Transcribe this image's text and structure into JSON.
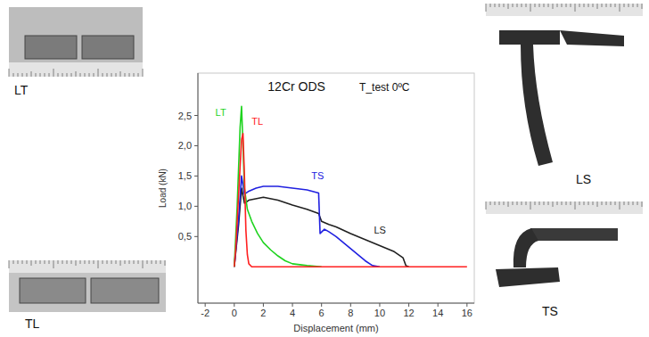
{
  "chart_data": {
    "type": "line",
    "title": "12Cr ODS",
    "annotation": "T_test 0ºC",
    "x_label": "Displacement (mm)",
    "y_label": "Load (kN)",
    "xlim": [
      -2.5,
      16.5
    ],
    "ylim": [
      -0.6,
      3.2
    ],
    "xticks": [
      -2,
      0,
      2,
      4,
      6,
      8,
      10,
      12,
      14,
      16
    ],
    "yticks": [
      {
        "value": 0.5,
        "label": "0,5"
      },
      {
        "value": 1.0,
        "label": "1,0"
      },
      {
        "value": 1.5,
        "label": "1,5"
      },
      {
        "value": 2.0,
        "label": "2,0"
      },
      {
        "value": 2.5,
        "label": "2,5"
      }
    ],
    "grid": false,
    "specimens": [
      "LT",
      "TL",
      "LS",
      "TS"
    ],
    "series": [
      {
        "name": "LT",
        "color": "#1fd31f",
        "x": [
          0,
          0.2,
          0.4,
          0.5,
          0.6,
          0.7,
          0.9,
          1.2,
          1.6,
          2.0,
          2.5,
          3.0,
          3.5,
          4.0,
          5.0,
          6.0
        ],
        "values": [
          0,
          1.0,
          2.3,
          2.65,
          2.0,
          1.3,
          0.95,
          0.75,
          0.55,
          0.4,
          0.28,
          0.18,
          0.1,
          0.05,
          0.02,
          0
        ]
      },
      {
        "name": "TL",
        "color": "#ff2020",
        "x": [
          0,
          0.1,
          0.3,
          0.5,
          0.6,
          0.7,
          0.8,
          0.9,
          1.0,
          1.2,
          16
        ],
        "values": [
          0,
          0.3,
          1.2,
          2.1,
          2.2,
          1.5,
          0.6,
          0.2,
          0.05,
          0,
          0
        ]
      },
      {
        "name": "TS",
        "color": "#2020e0",
        "x": [
          0,
          0.3,
          0.5,
          0.7,
          1.0,
          1.5,
          2,
          3,
          4,
          5,
          5.8,
          5.9,
          6.2,
          6.5,
          7,
          7.5,
          8,
          8.5,
          9,
          9.5,
          10
        ],
        "values": [
          0,
          0.8,
          1.5,
          1.2,
          1.25,
          1.3,
          1.33,
          1.33,
          1.3,
          1.27,
          1.22,
          0.55,
          0.62,
          0.58,
          0.5,
          0.4,
          0.3,
          0.2,
          0.1,
          0.02,
          0
        ]
      },
      {
        "name": "LS",
        "color": "#202020",
        "x": [
          0,
          0.3,
          0.5,
          0.7,
          1,
          2,
          3,
          4,
          5,
          5.8,
          6,
          6.5,
          7,
          8,
          9,
          10,
          11,
          11.6,
          11.8,
          12
        ],
        "values": [
          0,
          0.7,
          1.3,
          1.05,
          1.1,
          1.15,
          1.1,
          1.02,
          0.95,
          0.88,
          0.75,
          0.7,
          0.66,
          0.55,
          0.45,
          0.35,
          0.25,
          0.15,
          0.02,
          0
        ]
      }
    ]
  }
}
